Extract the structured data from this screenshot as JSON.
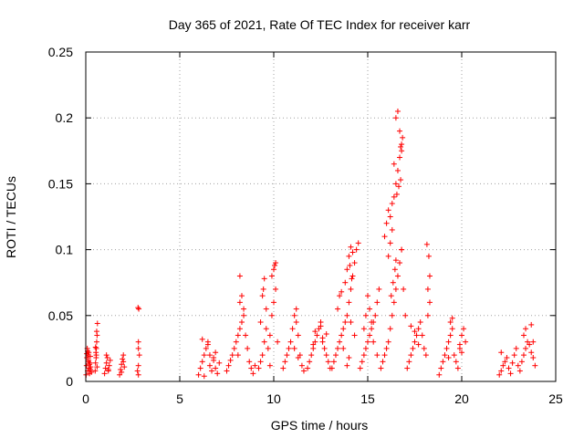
{
  "chart_data": {
    "type": "scatter",
    "title": "Day 365 of 2021, Rate Of TEC Index for receiver karr",
    "xlabel": "GPS time / hours",
    "ylabel": "ROTI / TECUs",
    "xlim": [
      0,
      25
    ],
    "ylim": [
      0,
      0.25
    ],
    "x_ticks": [
      "0",
      "5",
      "10",
      "15",
      "20",
      "25"
    ],
    "y_ticks": [
      "0",
      "0.05",
      "0.1",
      "0.15",
      "0.2",
      "0.25"
    ],
    "grid": true,
    "marker": "plus",
    "color": "#ff0000",
    "series": [
      {
        "x": [
          0.02,
          0.04,
          0.06,
          0.08,
          0.1,
          0.12,
          0.14,
          0.16,
          0.18,
          0.2,
          0.22,
          0.24,
          0.26,
          0.3,
          0.05,
          0.15,
          0.25,
          0.1,
          0.2,
          0.5,
          0.52,
          0.54,
          0.56,
          0.58,
          0.6,
          0.62,
          0.55,
          0.6,
          0.58,
          0.52,
          0.56,
          1.0,
          1.05,
          1.1,
          1.15,
          1.2,
          1.25,
          1.3,
          1.1,
          1.2,
          1.8,
          1.85,
          1.9,
          1.95,
          2.0,
          2.05,
          1.9,
          2.0,
          2.75,
          2.8,
          2.85,
          2.8,
          2.8,
          2.82,
          2.78,
          2.8,
          6.0,
          6.1,
          6.2,
          6.3,
          6.4,
          6.5,
          6.6,
          6.7,
          6.8,
          6.9,
          7.0,
          7.1,
          6.2,
          6.5,
          6.8,
          6.3,
          6.9,
          6.6,
          7.5,
          7.6,
          7.7,
          7.8,
          7.9,
          8.0,
          8.1,
          8.2,
          8.3,
          8.4,
          8.5,
          8.6,
          8.7,
          8.8,
          8.9,
          9.0,
          8.2,
          8.3,
          8.2,
          8.4,
          8.1,
          9.2,
          9.3,
          9.4,
          9.5,
          9.6,
          9.7,
          9.8,
          9.9,
          10.0,
          10.1,
          10.2,
          9.4,
          9.5,
          9.3,
          9.8,
          9.9,
          10.0,
          10.05,
          10.1,
          9.6,
          9.45,
          10.5,
          10.6,
          10.7,
          10.8,
          10.9,
          11.0,
          11.1,
          11.2,
          11.3,
          11.4,
          11.5,
          11.6,
          11.2,
          11.3,
          11.1,
          11.8,
          11.9,
          12.0,
          12.1,
          12.2,
          12.3,
          12.4,
          12.5,
          12.6,
          12.7,
          12.8,
          12.9,
          13.0,
          12.2,
          12.5,
          12.8,
          12.1,
          12.6,
          13.1,
          13.2,
          13.3,
          13.4,
          13.5,
          13.6,
          13.7,
          13.8,
          13.9,
          14.0,
          14.1,
          14.2,
          14.3,
          14.4,
          14.5,
          13.4,
          13.5,
          13.6,
          13.8,
          13.9,
          14.0,
          14.1,
          14.2,
          14.05,
          14.15,
          13.7,
          14.3,
          13.9,
          14.0,
          14.1,
          14.6,
          14.7,
          14.8,
          14.9,
          15.0,
          15.1,
          15.2,
          15.3,
          15.4,
          15.5,
          15.6,
          14.9,
          15.0,
          15.1,
          15.2,
          14.8,
          15.3,
          15.5,
          15.7,
          15.8,
          15.9,
          16.0,
          16.1,
          16.2,
          16.3,
          16.4,
          16.5,
          16.6,
          16.7,
          16.8,
          16.9,
          17.0,
          15.9,
          16.0,
          16.1,
          16.2,
          16.3,
          16.4,
          16.5,
          16.6,
          16.7,
          16.8,
          16.75,
          16.8,
          16.85,
          16.7,
          16.6,
          16.5,
          16.4,
          16.3,
          16.2,
          16.1,
          16.55,
          16.65,
          16.75,
          16.8,
          16.45,
          16.35,
          16.25,
          16.5,
          17.1,
          17.2,
          17.3,
          17.4,
          17.5,
          17.6,
          17.7,
          17.8,
          17.9,
          18.0,
          18.1,
          18.2,
          18.3,
          17.3,
          17.5,
          17.7,
          18.2,
          18.3,
          18.25,
          18.15,
          18.8,
          18.9,
          19.0,
          19.1,
          19.2,
          19.3,
          19.4,
          19.5,
          19.6,
          19.7,
          19.8,
          19.9,
          20.0,
          20.1,
          20.2,
          19.4,
          19.5,
          19.3,
          19.9,
          20.0,
          22.0,
          22.1,
          22.2,
          22.3,
          22.4,
          22.5,
          22.6,
          22.7,
          22.8,
          22.9,
          23.0,
          23.1,
          23.2,
          23.3,
          23.4,
          23.5,
          23.6,
          23.7,
          23.8,
          23.9,
          22.1,
          23.3,
          23.4,
          23.7,
          23.8
        ],
        "y": [
          0.005,
          0.012,
          0.018,
          0.025,
          0.008,
          0.02,
          0.015,
          0.022,
          0.01,
          0.006,
          0.014,
          0.019,
          0.011,
          0.007,
          0.021,
          0.016,
          0.009,
          0.023,
          0.013,
          0.008,
          0.014,
          0.022,
          0.025,
          0.03,
          0.035,
          0.044,
          0.018,
          0.011,
          0.038,
          0.026,
          0.02,
          0.006,
          0.01,
          0.014,
          0.018,
          0.008,
          0.012,
          0.016,
          0.02,
          0.009,
          0.005,
          0.009,
          0.013,
          0.017,
          0.02,
          0.011,
          0.007,
          0.015,
          0.008,
          0.012,
          0.02,
          0.025,
          0.03,
          0.055,
          0.056,
          0.005,
          0.005,
          0.01,
          0.015,
          0.02,
          0.025,
          0.03,
          0.012,
          0.008,
          0.018,
          0.022,
          0.006,
          0.014,
          0.032,
          0.028,
          0.016,
          0.004,
          0.01,
          0.02,
          0.008,
          0.012,
          0.016,
          0.02,
          0.025,
          0.03,
          0.035,
          0.04,
          0.045,
          0.05,
          0.035,
          0.025,
          0.015,
          0.01,
          0.006,
          0.012,
          0.06,
          0.065,
          0.08,
          0.055,
          0.02,
          0.01,
          0.015,
          0.02,
          0.03,
          0.04,
          0.025,
          0.035,
          0.05,
          0.06,
          0.07,
          0.03,
          0.065,
          0.078,
          0.045,
          0.012,
          0.08,
          0.085,
          0.088,
          0.09,
          0.055,
          0.07,
          0.01,
          0.015,
          0.02,
          0.025,
          0.03,
          0.04,
          0.05,
          0.055,
          0.035,
          0.02,
          0.012,
          0.008,
          0.045,
          0.018,
          0.025,
          0.01,
          0.015,
          0.02,
          0.025,
          0.03,
          0.035,
          0.04,
          0.045,
          0.03,
          0.025,
          0.02,
          0.015,
          0.01,
          0.038,
          0.042,
          0.036,
          0.028,
          0.033,
          0.01,
          0.015,
          0.02,
          0.025,
          0.03,
          0.035,
          0.04,
          0.045,
          0.05,
          0.06,
          0.07,
          0.08,
          0.09,
          0.1,
          0.105,
          0.055,
          0.065,
          0.068,
          0.075,
          0.085,
          0.095,
          0.102,
          0.098,
          0.088,
          0.078,
          0.025,
          0.035,
          0.012,
          0.018,
          0.045,
          0.01,
          0.015,
          0.02,
          0.025,
          0.03,
          0.035,
          0.04,
          0.045,
          0.05,
          0.06,
          0.07,
          0.05,
          0.065,
          0.055,
          0.045,
          0.04,
          0.03,
          0.02,
          0.01,
          0.015,
          0.02,
          0.025,
          0.03,
          0.04,
          0.05,
          0.06,
          0.07,
          0.08,
          0.09,
          0.1,
          0.07,
          0.05,
          0.11,
          0.12,
          0.13,
          0.125,
          0.135,
          0.14,
          0.15,
          0.16,
          0.17,
          0.175,
          0.178,
          0.18,
          0.185,
          0.19,
          0.205,
          0.2,
          0.165,
          0.115,
          0.105,
          0.095,
          0.142,
          0.148,
          0.153,
          0.1,
          0.085,
          0.075,
          0.065,
          0.092,
          0.01,
          0.015,
          0.02,
          0.025,
          0.03,
          0.035,
          0.04,
          0.045,
          0.035,
          0.025,
          0.02,
          0.05,
          0.06,
          0.042,
          0.038,
          0.028,
          0.07,
          0.08,
          0.095,
          0.104,
          0.005,
          0.01,
          0.015,
          0.02,
          0.025,
          0.03,
          0.035,
          0.04,
          0.02,
          0.015,
          0.01,
          0.025,
          0.035,
          0.04,
          0.03,
          0.045,
          0.048,
          0.018,
          0.028,
          0.022,
          0.005,
          0.008,
          0.012,
          0.015,
          0.018,
          0.01,
          0.006,
          0.014,
          0.02,
          0.025,
          0.012,
          0.008,
          0.015,
          0.02,
          0.025,
          0.03,
          0.028,
          0.022,
          0.018,
          0.012,
          0.022,
          0.035,
          0.04,
          0.043,
          0.03
        ]
      }
    ]
  }
}
